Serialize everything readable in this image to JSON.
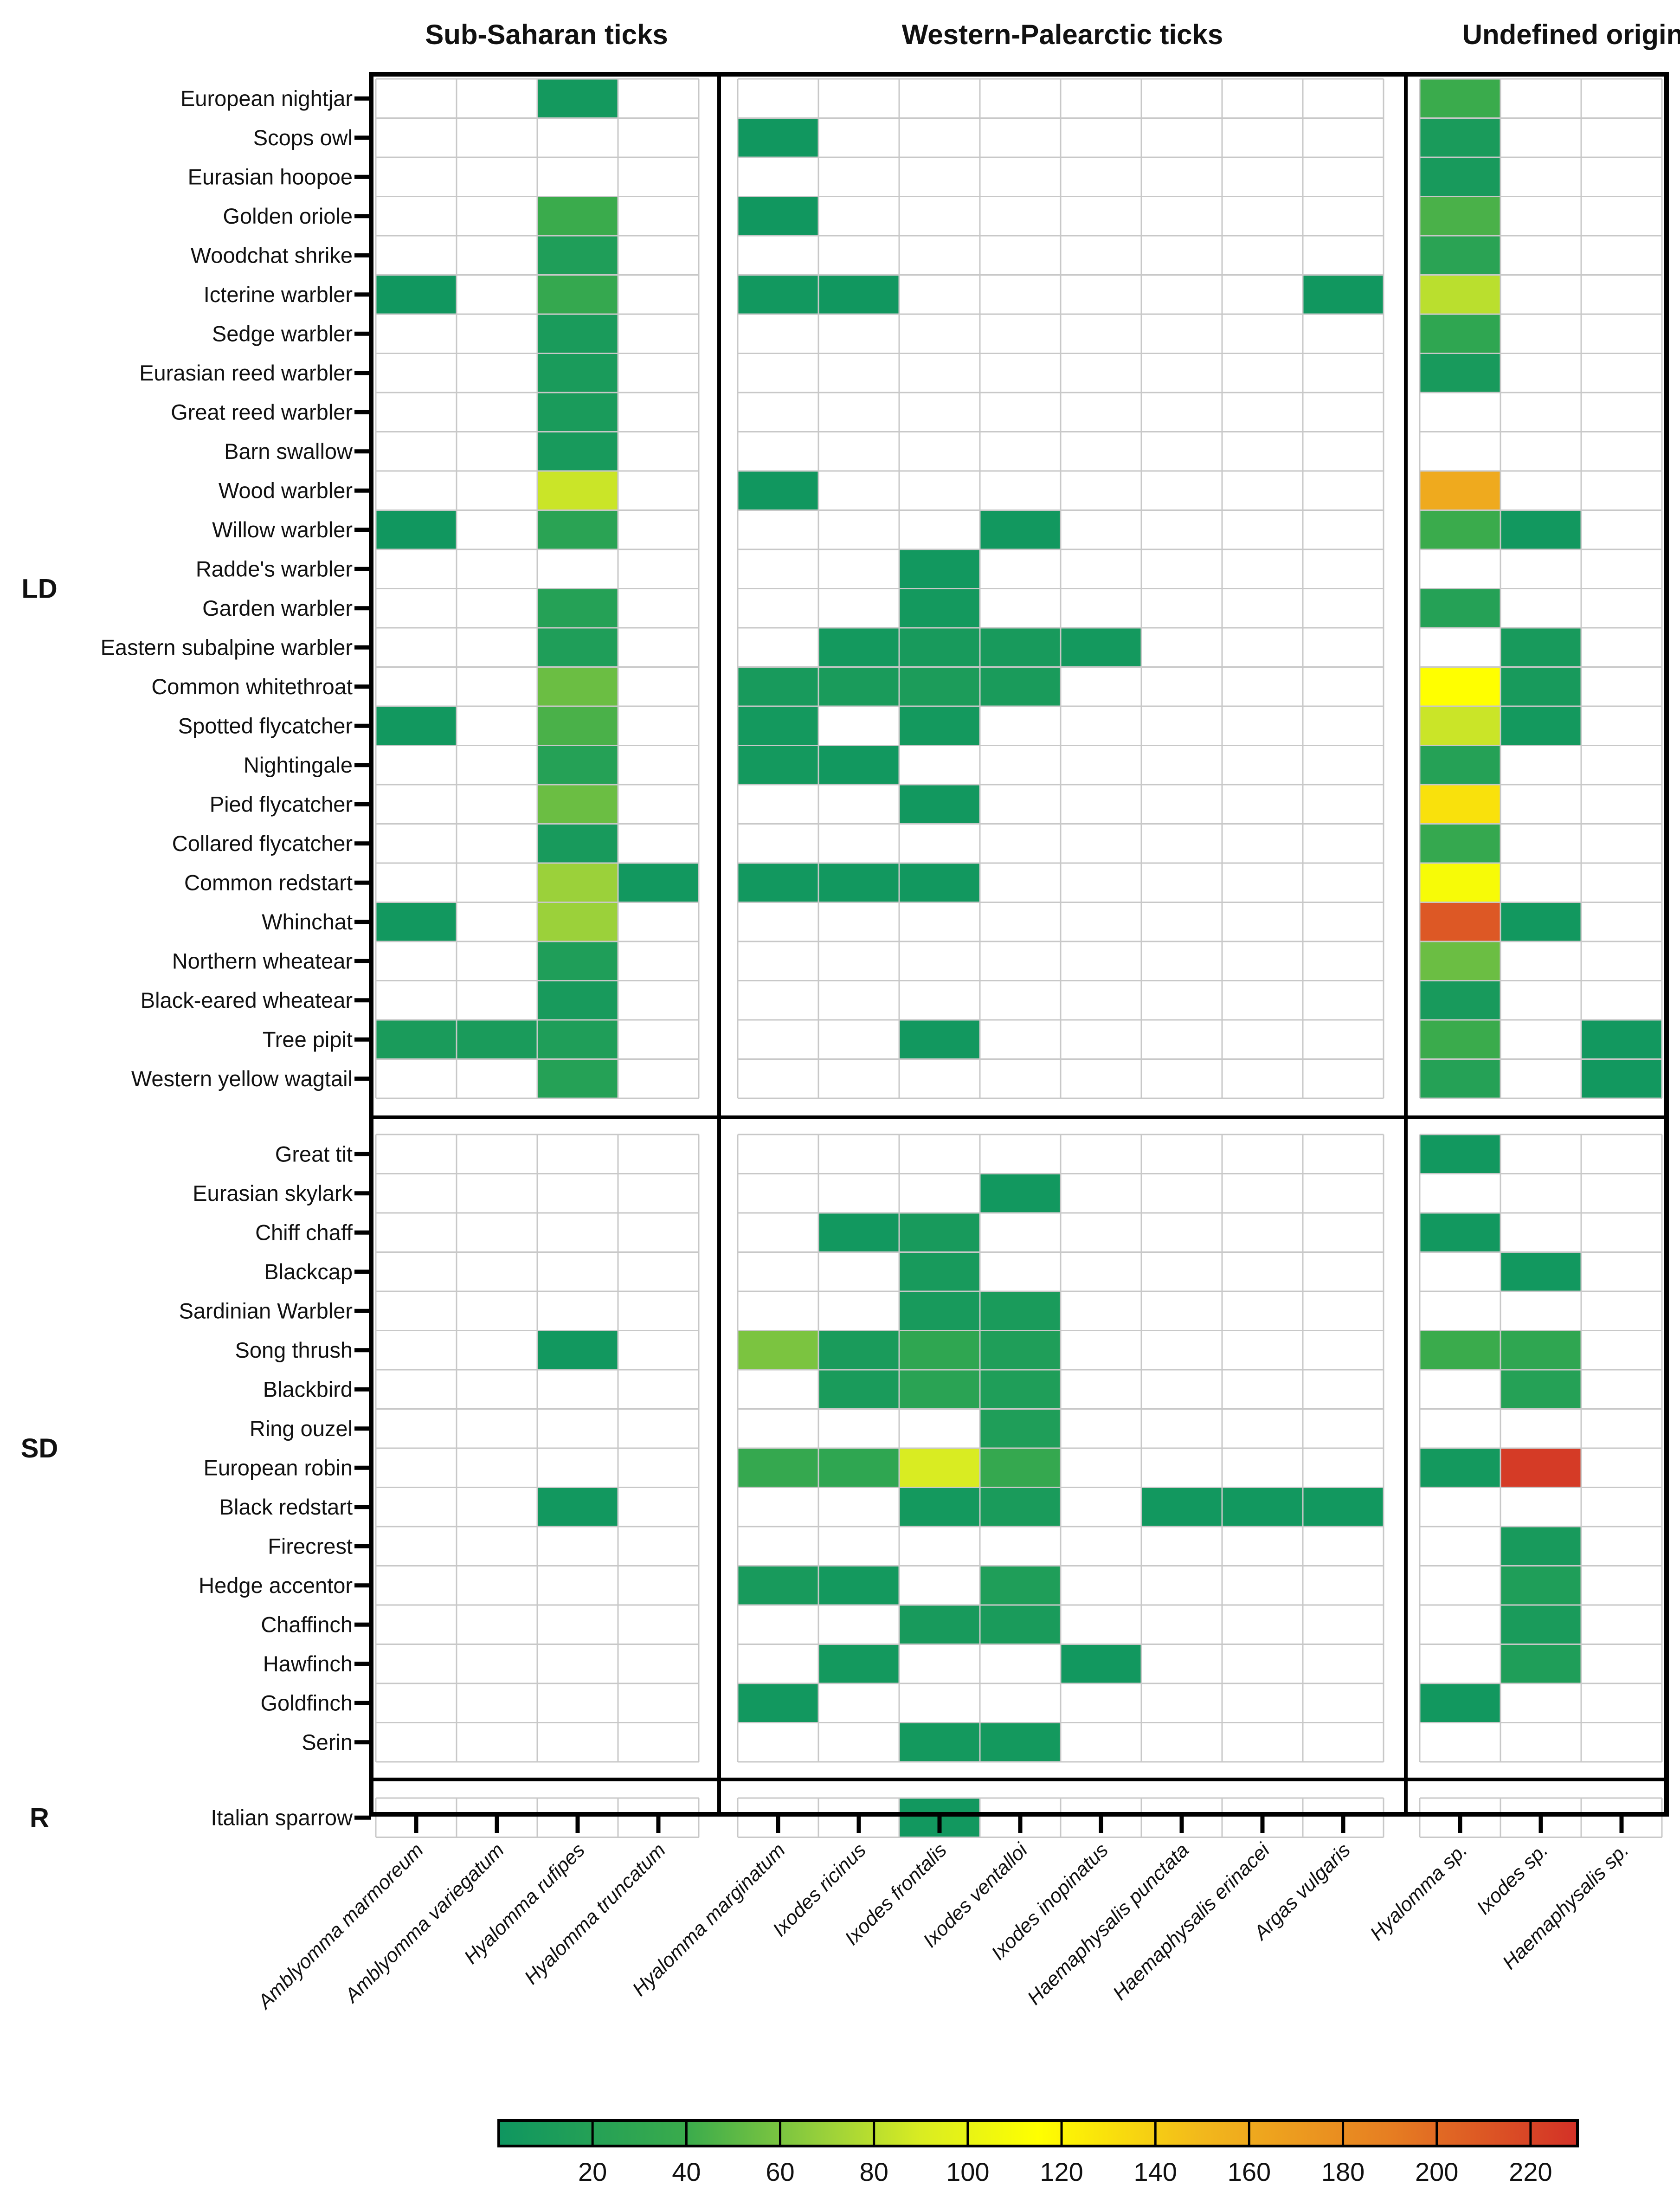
{
  "chart_data": {
    "type": "heatmap",
    "title": "",
    "group_titles": [
      "Sub-Saharan ticks",
      "Western-Palearctic ticks",
      "Undefined origin"
    ],
    "column_groups": [
      {
        "name": "Sub-Saharan ticks",
        "columns": [
          "Amblyomma marmoreum",
          "Amblyomma variegatum",
          "Hyalomma rufipes",
          "Hyalomma truncatum"
        ]
      },
      {
        "name": "Western-Palearctic ticks",
        "columns": [
          "Hyalomma marginatum",
          "Ixodes ricinus",
          "Ixodes frontalis",
          "Ixodes ventalloi",
          "Ixodes inopinatus",
          "Haemaphysalis punctata",
          "Haemaphysalis erinacei",
          "Argas vulgaris"
        ]
      },
      {
        "name": "Undefined origin",
        "columns": [
          "Hyalomma sp.",
          "Ixodes sp.",
          "Haemaphysalis sp."
        ]
      }
    ],
    "columns": [
      "Amblyomma marmoreum",
      "Amblyomma variegatum",
      "Hyalomma rufipes",
      "Hyalomma truncatum",
      "Hyalomma marginatum",
      "Ixodes ricinus",
      "Ixodes frontalis",
      "Ixodes ventalloi",
      "Ixodes inopinatus",
      "Haemaphysalis punctata",
      "Haemaphysalis erinacei",
      "Argas vulgaris",
      "Hyalomma sp.",
      "Ixodes sp.",
      "Haemaphysalis sp."
    ],
    "row_groups": [
      {
        "name": "LD",
        "rows": [
          {
            "label": "European nightjar",
            "values": [
              null,
              null,
              5,
              null,
              null,
              null,
              null,
              null,
              null,
              null,
              null,
              null,
              40,
              null,
              null
            ]
          },
          {
            "label": "Scops owl",
            "values": [
              null,
              null,
              null,
              null,
              2,
              null,
              null,
              null,
              null,
              null,
              null,
              null,
              10,
              null,
              null
            ]
          },
          {
            "label": "Eurasian hoopoe",
            "values": [
              null,
              null,
              null,
              null,
              null,
              null,
              null,
              null,
              null,
              null,
              null,
              null,
              8,
              null,
              null
            ]
          },
          {
            "label": "Golden oriole",
            "values": [
              null,
              null,
              40,
              null,
              2,
              null,
              null,
              null,
              null,
              null,
              null,
              null,
              45,
              null,
              null
            ]
          },
          {
            "label": "Woodchat shrike",
            "values": [
              null,
              null,
              15,
              null,
              null,
              null,
              null,
              null,
              null,
              null,
              null,
              null,
              25,
              null,
              null
            ]
          },
          {
            "label": "Icterine warbler",
            "values": [
              2,
              null,
              35,
              null,
              3,
              2,
              null,
              null,
              null,
              null,
              null,
              2,
              80,
              null,
              null
            ]
          },
          {
            "label": "Sedge warbler",
            "values": [
              null,
              null,
              10,
              null,
              null,
              null,
              null,
              null,
              null,
              null,
              null,
              null,
              30,
              null,
              null
            ]
          },
          {
            "label": "Eurasian reed warbler",
            "values": [
              null,
              null,
              10,
              null,
              null,
              null,
              null,
              null,
              null,
              null,
              null,
              null,
              8,
              null,
              null
            ]
          },
          {
            "label": "Great reed warbler",
            "values": [
              null,
              null,
              10,
              null,
              null,
              null,
              null,
              null,
              null,
              null,
              null,
              null,
              null,
              null,
              null
            ]
          },
          {
            "label": "Barn swallow",
            "values": [
              null,
              null,
              8,
              null,
              null,
              null,
              null,
              null,
              null,
              null,
              null,
              null,
              null,
              null,
              null
            ]
          },
          {
            "label": "Wood warbler",
            "values": [
              null,
              null,
              85,
              null,
              2,
              null,
              null,
              null,
              null,
              null,
              null,
              null,
              160,
              null,
              null
            ]
          },
          {
            "label": "Willow warbler",
            "values": [
              2,
              null,
              25,
              null,
              null,
              null,
              null,
              3,
              null,
              null,
              null,
              null,
              40,
              3,
              null
            ]
          },
          {
            "label": "Radde's warbler",
            "values": [
              null,
              null,
              null,
              null,
              null,
              null,
              3,
              null,
              null,
              null,
              null,
              null,
              null,
              null,
              null
            ]
          },
          {
            "label": "Garden warbler",
            "values": [
              null,
              null,
              20,
              null,
              null,
              null,
              5,
              null,
              null,
              null,
              null,
              null,
              20,
              null,
              null
            ]
          },
          {
            "label": "Eastern subalpine warbler",
            "values": [
              null,
              null,
              15,
              null,
              null,
              5,
              8,
              8,
              5,
              null,
              null,
              null,
              null,
              8,
              null
            ]
          },
          {
            "label": "Common whitethroat",
            "values": [
              null,
              null,
              55,
              null,
              8,
              10,
              12,
              10,
              null,
              null,
              null,
              null,
              115,
              8,
              null
            ]
          },
          {
            "label": "Spotted flycatcher",
            "values": [
              3,
              null,
              45,
              null,
              5,
              null,
              5,
              null,
              null,
              null,
              null,
              null,
              85,
              5,
              null
            ]
          },
          {
            "label": "Nightingale",
            "values": [
              null,
              null,
              20,
              null,
              5,
              3,
              null,
              null,
              null,
              null,
              null,
              null,
              20,
              null,
              null
            ]
          },
          {
            "label": "Pied flycatcher",
            "values": [
              null,
              null,
              55,
              null,
              null,
              null,
              3,
              null,
              null,
              null,
              null,
              null,
              130,
              null,
              null
            ]
          },
          {
            "label": "Collared flycatcher",
            "values": [
              null,
              null,
              8,
              null,
              null,
              null,
              null,
              null,
              null,
              null,
              null,
              null,
              35,
              null,
              null
            ]
          },
          {
            "label": "Common redstart",
            "values": [
              null,
              null,
              70,
              3,
              3,
              3,
              3,
              null,
              null,
              null,
              null,
              null,
              110,
              null,
              null
            ]
          },
          {
            "label": "Whinchat",
            "values": [
              3,
              null,
              70,
              null,
              null,
              null,
              null,
              null,
              null,
              null,
              null,
              null,
              210,
              3,
              null
            ]
          },
          {
            "label": "Northern wheatear",
            "values": [
              null,
              null,
              15,
              null,
              null,
              null,
              null,
              null,
              null,
              null,
              null,
              null,
              55,
              null,
              null
            ]
          },
          {
            "label": "Black-eared wheatear",
            "values": [
              null,
              null,
              8,
              null,
              null,
              null,
              null,
              null,
              null,
              null,
              null,
              null,
              8,
              null,
              null
            ]
          },
          {
            "label": "Tree pipit",
            "values": [
              10,
              10,
              15,
              null,
              null,
              null,
              3,
              null,
              null,
              null,
              null,
              null,
              40,
              null,
              3
            ]
          },
          {
            "label": "Western yellow wagtail",
            "values": [
              null,
              null,
              20,
              null,
              null,
              null,
              null,
              null,
              null,
              null,
              null,
              null,
              20,
              null,
              3
            ]
          }
        ]
      },
      {
        "name": "SD",
        "rows": [
          {
            "label": "Great tit",
            "values": [
              null,
              null,
              null,
              null,
              null,
              null,
              null,
              null,
              null,
              null,
              null,
              null,
              3,
              null,
              null
            ]
          },
          {
            "label": "Eurasian skylark",
            "values": [
              null,
              null,
              null,
              null,
              null,
              null,
              null,
              3,
              null,
              null,
              null,
              null,
              null,
              null,
              null
            ]
          },
          {
            "label": "Chiff chaff",
            "values": [
              null,
              null,
              null,
              null,
              null,
              3,
              8,
              null,
              null,
              null,
              null,
              null,
              3,
              null,
              null
            ]
          },
          {
            "label": "Blackcap",
            "values": [
              null,
              null,
              null,
              null,
              null,
              null,
              8,
              null,
              null,
              null,
              null,
              null,
              null,
              3,
              null
            ]
          },
          {
            "label": "Sardinian Warbler",
            "values": [
              null,
              null,
              null,
              null,
              null,
              null,
              8,
              10,
              null,
              null,
              null,
              null,
              null,
              null,
              null
            ]
          },
          {
            "label": "Song thrush",
            "values": [
              null,
              null,
              3,
              null,
              60,
              10,
              30,
              15,
              null,
              null,
              null,
              null,
              40,
              30,
              null
            ]
          },
          {
            "label": "Blackbird",
            "values": [
              null,
              null,
              null,
              null,
              null,
              10,
              25,
              15,
              null,
              null,
              null,
              null,
              null,
              20,
              null
            ]
          },
          {
            "label": "Ring ouzel",
            "values": [
              null,
              null,
              null,
              null,
              null,
              null,
              null,
              15,
              null,
              null,
              null,
              null,
              null,
              null,
              null
            ]
          },
          {
            "label": "European robin",
            "values": [
              null,
              null,
              null,
              null,
              35,
              30,
              90,
              35,
              null,
              null,
              null,
              null,
              5,
              225,
              null
            ]
          },
          {
            "label": "Black redstart",
            "values": [
              null,
              null,
              3,
              null,
              null,
              null,
              5,
              10,
              null,
              3,
              3,
              3,
              null,
              null,
              null
            ]
          },
          {
            "label": "Firecrest",
            "values": [
              null,
              null,
              null,
              null,
              null,
              null,
              null,
              null,
              null,
              null,
              null,
              null,
              null,
              8,
              null
            ]
          },
          {
            "label": "Hedge accentor",
            "values": [
              null,
              null,
              null,
              null,
              8,
              5,
              null,
              15,
              null,
              null,
              null,
              null,
              null,
              15,
              null
            ]
          },
          {
            "label": "Chaffinch",
            "values": [
              null,
              null,
              null,
              null,
              null,
              null,
              8,
              10,
              null,
              null,
              null,
              null,
              null,
              10,
              null
            ]
          },
          {
            "label": "Hawfinch",
            "values": [
              null,
              null,
              null,
              null,
              null,
              5,
              null,
              null,
              3,
              null,
              null,
              null,
              null,
              15,
              null
            ]
          },
          {
            "label": "Goldfinch",
            "values": [
              null,
              null,
              null,
              null,
              3,
              null,
              null,
              null,
              null,
              null,
              null,
              null,
              3,
              null,
              null
            ]
          },
          {
            "label": "Serin",
            "values": [
              null,
              null,
              null,
              null,
              null,
              null,
              5,
              5,
              null,
              null,
              null,
              null,
              null,
              null,
              null
            ]
          }
        ]
      },
      {
        "name": "R",
        "rows": [
          {
            "label": "Italian sparrow",
            "values": [
              null,
              null,
              null,
              null,
              null,
              null,
              3,
              null,
              null,
              null,
              null,
              null,
              null,
              null,
              null
            ]
          }
        ]
      }
    ],
    "colorbar": {
      "min": 0,
      "max": 230,
      "ticks": [
        20,
        40,
        60,
        80,
        100,
        120,
        140,
        160,
        180,
        200,
        220
      ],
      "stops": [
        {
          "value": 0,
          "color": "#0f9660"
        },
        {
          "value": 40,
          "color": "#3aab4c"
        },
        {
          "value": 70,
          "color": "#9bd13a"
        },
        {
          "value": 90,
          "color": "#d9ec22"
        },
        {
          "value": 115,
          "color": "#ffff00"
        },
        {
          "value": 150,
          "color": "#f2b81c"
        },
        {
          "value": 190,
          "color": "#e67e22"
        },
        {
          "value": 230,
          "color": "#d33127"
        }
      ]
    }
  }
}
